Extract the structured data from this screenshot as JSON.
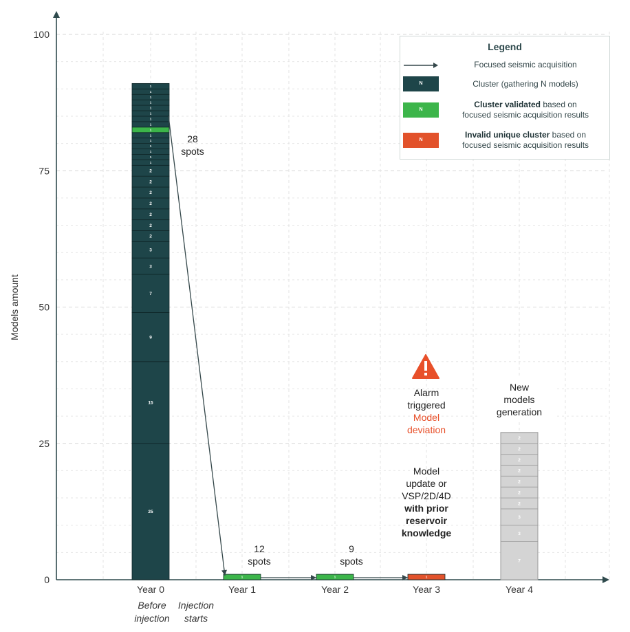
{
  "chart_data": {
    "type": "bar",
    "ylabel": "Models amount",
    "ylim": [
      0,
      100
    ],
    "yticks": [
      0,
      25,
      50,
      75,
      100
    ],
    "categories": [
      "Year 0",
      "Year 1",
      "Year 2",
      "Year 3",
      "Year 4"
    ],
    "category_sublabels": [
      [
        "Before",
        "injection"
      ],
      [
        "Injection",
        "starts"
      ]
    ],
    "stacks": [
      {
        "category": "Year 0",
        "total": 91,
        "segments": [
          {
            "n": 25,
            "status": "cluster"
          },
          {
            "n": 15,
            "status": "cluster"
          },
          {
            "n": 9,
            "status": "cluster"
          },
          {
            "n": 7,
            "status": "cluster"
          },
          {
            "n": 3,
            "status": "cluster"
          },
          {
            "n": 3,
            "status": "cluster"
          },
          {
            "n": 2,
            "status": "cluster"
          },
          {
            "n": 2,
            "status": "cluster"
          },
          {
            "n": 2,
            "status": "cluster"
          },
          {
            "n": 2,
            "status": "cluster"
          },
          {
            "n": 2,
            "status": "cluster"
          },
          {
            "n": 2,
            "status": "cluster"
          },
          {
            "n": 2,
            "status": "cluster"
          },
          {
            "n": 1,
            "status": "cluster"
          },
          {
            "n": 1,
            "status": "cluster"
          },
          {
            "n": 1,
            "status": "cluster"
          },
          {
            "n": 1,
            "status": "cluster"
          },
          {
            "n": 1,
            "status": "cluster"
          },
          {
            "n": 1,
            "status": "cluster"
          },
          {
            "n": 1,
            "status": "validated"
          },
          {
            "n": 1,
            "status": "cluster"
          },
          {
            "n": 1,
            "status": "cluster"
          },
          {
            "n": 1,
            "status": "cluster"
          },
          {
            "n": 1,
            "status": "cluster"
          },
          {
            "n": 1,
            "status": "cluster"
          },
          {
            "n": 1,
            "status": "cluster"
          },
          {
            "n": 1,
            "status": "cluster"
          },
          {
            "n": 1,
            "status": "cluster"
          }
        ]
      },
      {
        "category": "Year 1",
        "total": 1,
        "segments": [
          {
            "n": 1,
            "status": "validated"
          }
        ]
      },
      {
        "category": "Year 2",
        "total": 1,
        "segments": [
          {
            "n": 1,
            "status": "validated"
          }
        ]
      },
      {
        "category": "Year 3",
        "total": 1,
        "segments": [
          {
            "n": 1,
            "status": "invalid"
          }
        ]
      },
      {
        "category": "Year 4",
        "total": 27,
        "segments": [
          {
            "n": 7,
            "status": "new"
          },
          {
            "n": 3,
            "status": "new"
          },
          {
            "n": 3,
            "status": "new"
          },
          {
            "n": 2,
            "status": "new"
          },
          {
            "n": 2,
            "status": "new"
          },
          {
            "n": 2,
            "status": "new"
          },
          {
            "n": 2,
            "status": "new"
          },
          {
            "n": 2,
            "status": "new"
          },
          {
            "n": 2,
            "status": "new"
          },
          {
            "n": 2,
            "status": "new"
          }
        ]
      }
    ],
    "arrows": [
      {
        "from": "Year 0",
        "to": "Year 1",
        "label": [
          "28",
          "spots"
        ]
      },
      {
        "from": "Year 1",
        "to": "Year 2",
        "label": [
          "12",
          "spots"
        ]
      },
      {
        "from": "Year 2",
        "to": "Year 3",
        "label": [
          "9",
          "spots"
        ]
      }
    ],
    "legend": {
      "title": "Legend",
      "key_symbol": "N",
      "items": [
        {
          "kind": "arrow",
          "text": "Focused seismic acquisition"
        },
        {
          "kind": "cluster",
          "text": "Cluster (gathering N models)"
        },
        {
          "kind": "validated",
          "bold": "Cluster validated",
          "text": " based on",
          "text2": "focused seismic acquisition results"
        },
        {
          "kind": "invalid",
          "bold": "Invalid unique cluster",
          "text": " based on",
          "text2": "focused seismic acquisition results"
        }
      ]
    },
    "annotations": {
      "alarm": [
        "Alarm",
        "triggered"
      ],
      "deviation": [
        "Model",
        "deviation"
      ],
      "update": [
        "Model",
        "update or",
        "VSP/2D/4D"
      ],
      "update_bold": [
        "with prior",
        "reservoir",
        "knowledge"
      ],
      "new_models": [
        "New",
        "models",
        "generation"
      ]
    },
    "grid": true,
    "colors": {
      "cluster": "#1e4549",
      "validated": "#3cb54a",
      "invalid": "#e2522b",
      "new": "#d4d4d4",
      "alarm": "#e8502a",
      "axis": "#2f4a4d"
    }
  }
}
